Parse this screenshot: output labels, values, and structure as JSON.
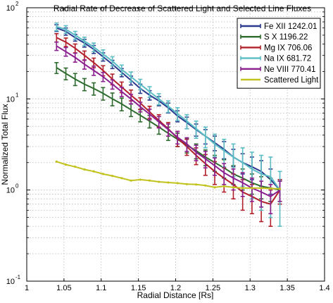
{
  "chart_data": {
    "type": "line",
    "title": "Radial Rate of Decrease of Scattered Light and Selected Line Fluxes",
    "xlabel": "Radial Distance [Rs]",
    "ylabel": "Normalized Total Flux",
    "xlim": [
      1,
      1.4
    ],
    "ylim": [
      0.1,
      100
    ],
    "yscale": "log",
    "grid": true,
    "legend_position": "top-right",
    "x_ticks": [
      "1",
      "1.05",
      "1.1",
      "1.15",
      "1.2",
      "1.25",
      "1.3",
      "1.35",
      "1.4"
    ],
    "y_ticks": [
      "10",
      "10",
      "10",
      "10"
    ],
    "y_tick_exponents": [
      "-1",
      "0",
      "1",
      "2"
    ],
    "x": [
      1.04,
      1.0525,
      1.065,
      1.0775,
      1.09,
      1.1025,
      1.115,
      1.1275,
      1.14,
      1.1525,
      1.165,
      1.1775,
      1.19,
      1.2025,
      1.215,
      1.2275,
      1.24,
      1.2525,
      1.265,
      1.2775,
      1.29,
      1.3025,
      1.315,
      1.3275,
      1.34
    ],
    "series": [
      {
        "name": "Fe XII 1242.01",
        "color": "#2b3a8f",
        "values": [
          60,
          55,
          47,
          41,
          35,
          29,
          24,
          19.5,
          16,
          13,
          11,
          9.5,
          8,
          6.5,
          5.5,
          4.6,
          3.9,
          3.3,
          2.8,
          2.3,
          2.0,
          1.8,
          1.6,
          1.3,
          1.0
        ],
        "errors": [
          5,
          5,
          4,
          4,
          3.5,
          3,
          2.5,
          2,
          1.8,
          1.5,
          1.3,
          1.1,
          1.0,
          0.9,
          0.8,
          0.7,
          0.7,
          0.6,
          0.6,
          0.5,
          0.5,
          0.5,
          0.5,
          0.4,
          0.3
        ]
      },
      {
        "name": "S X 1196.22",
        "color": "#2e6b2e",
        "values": [
          22,
          19,
          16.5,
          14.5,
          13,
          11.5,
          10,
          8.8,
          7.6,
          6.6,
          5.7,
          4.9,
          4.2,
          3.6,
          3.1,
          2.7,
          2.3,
          2.0,
          1.75,
          1.5,
          1.35,
          1.2,
          1.1,
          1.05,
          1.0
        ],
        "errors": [
          3,
          2.8,
          2.5,
          2.2,
          2.0,
          1.8,
          1.6,
          1.4,
          1.2,
          1.0,
          0.9,
          0.8,
          0.7,
          0.6,
          0.55,
          0.5,
          0.45,
          0.4,
          0.4,
          0.35,
          0.35,
          0.3,
          0.3,
          0.3,
          0.25
        ]
      },
      {
        "name": "Mg IX 706.06",
        "color": "#b3202a",
        "values": [
          47,
          42,
          36,
          30,
          25,
          20.5,
          16.5,
          13.5,
          11,
          9,
          7.2,
          5.8,
          4.7,
          3.7,
          3.0,
          2.4,
          1.95,
          1.6,
          1.35,
          1.15,
          0.95,
          0.85,
          0.75,
          0.7,
          1.0
        ],
        "errors": [
          5,
          4.5,
          4,
          3.5,
          3,
          2.6,
          2.2,
          1.8,
          1.5,
          1.3,
          1.1,
          0.9,
          0.8,
          0.7,
          0.6,
          0.5,
          0.5,
          0.45,
          0.4,
          0.35,
          0.35,
          0.3,
          0.3,
          0.3,
          0.3
        ]
      },
      {
        "name": "Na IX 681.72",
        "color": "#5bbcc4",
        "values": [
          62,
          58,
          50,
          43,
          37,
          31,
          26,
          21,
          17.5,
          14.5,
          12,
          10,
          8.3,
          6.9,
          5.7,
          4.7,
          3.9,
          3.2,
          2.7,
          2.3,
          2.0,
          1.7,
          1.5,
          1.4,
          1.0
        ],
        "errors": [
          6,
          5.5,
          5,
          4.5,
          4,
          3.5,
          3,
          2.5,
          2.2,
          1.9,
          1.6,
          1.4,
          1.2,
          1.1,
          1.0,
          1.0,
          1.0,
          0.9,
          0.9,
          0.9,
          0.9,
          0.9,
          0.9,
          0.9,
          0.6
        ]
      },
      {
        "name": "Ne VIII 770.41",
        "color": "#8b1f8f",
        "values": [
          38,
          33,
          28.5,
          24,
          20.5,
          17.5,
          14.5,
          12,
          10,
          8.2,
          6.8,
          5.6,
          4.6,
          3.8,
          3.2,
          2.6,
          2.2,
          1.85,
          1.55,
          1.35,
          1.2,
          1.05,
          0.95,
          0.85,
          1.0
        ],
        "errors": [
          4,
          3.6,
          3.2,
          2.8,
          2.4,
          2.0,
          1.7,
          1.4,
          1.2,
          1.0,
          0.9,
          0.8,
          0.7,
          0.6,
          0.55,
          0.5,
          0.45,
          0.4,
          0.4,
          0.35,
          0.35,
          0.3,
          0.3,
          0.3,
          0.25
        ]
      },
      {
        "name": "Scattered Light",
        "color": "#c2c21f",
        "values": [
          2.05,
          1.9,
          1.8,
          1.68,
          1.6,
          1.5,
          1.43,
          1.35,
          1.27,
          1.3,
          1.27,
          1.23,
          1.21,
          1.19,
          1.16,
          1.15,
          1.12,
          1.07,
          1.1,
          1.07,
          1.05,
          1.05,
          1.05,
          1.04,
          1.03
        ],
        "errors": []
      }
    ]
  }
}
